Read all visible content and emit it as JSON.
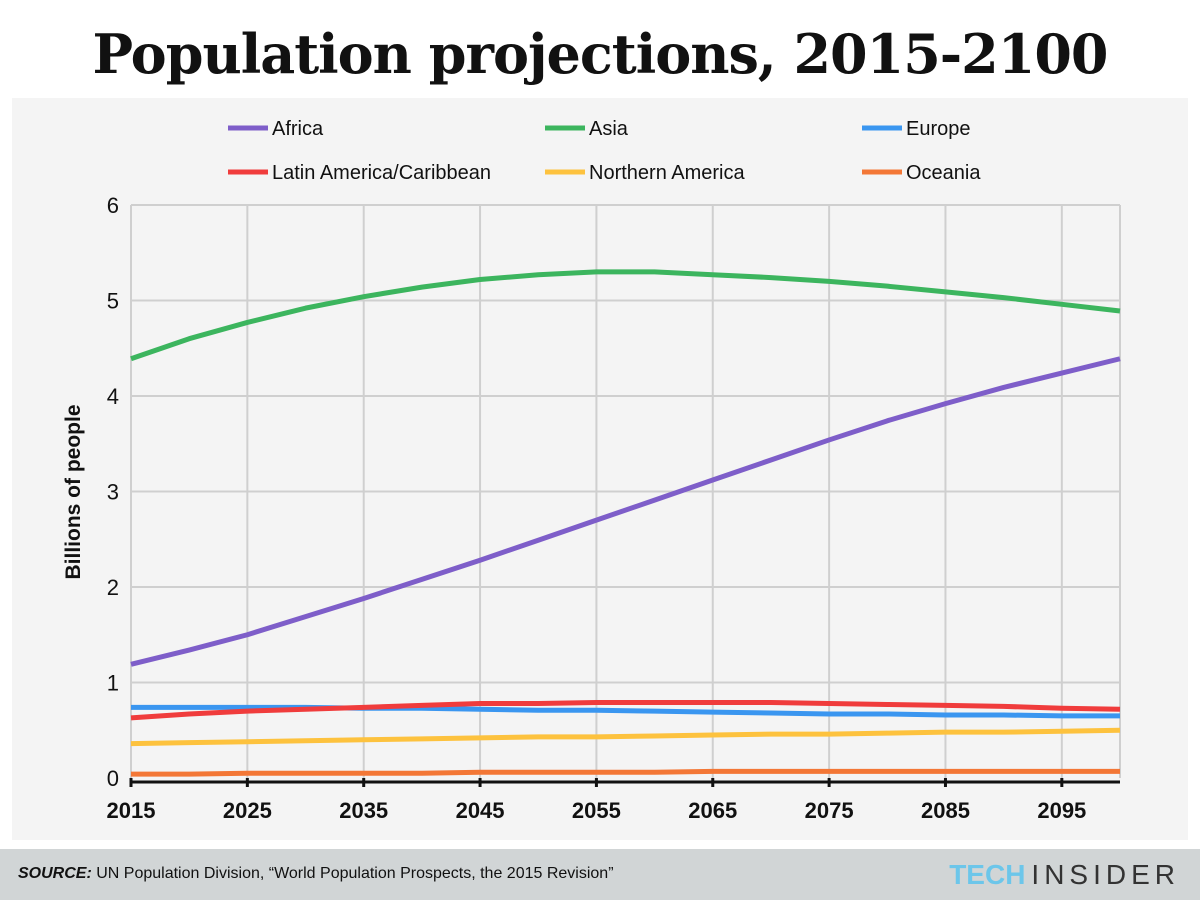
{
  "chart_data": {
    "type": "line",
    "title": "Population projections, 2015-2100",
    "xlabel": "",
    "ylabel": "Billions of people",
    "ylim": [
      0,
      6
    ],
    "xlim": [
      2015,
      2100
    ],
    "yticks": [
      "0",
      "1",
      "2",
      "3",
      "4",
      "5",
      "6"
    ],
    "xticks": [
      "2015",
      "2025",
      "2035",
      "2045",
      "2055",
      "2065",
      "2075",
      "2085",
      "2095"
    ],
    "x": [
      2015,
      2020,
      2025,
      2030,
      2035,
      2040,
      2045,
      2050,
      2055,
      2060,
      2065,
      2070,
      2075,
      2080,
      2085,
      2090,
      2095,
      2100
    ],
    "legend_position": "top",
    "series": [
      {
        "name": "Africa",
        "color": "#7e5ec9",
        "values": [
          1.19,
          1.34,
          1.5,
          1.69,
          1.88,
          2.08,
          2.28,
          2.49,
          2.7,
          2.91,
          3.12,
          3.33,
          3.54,
          3.74,
          3.92,
          4.09,
          4.24,
          4.39
        ]
      },
      {
        "name": "Asia",
        "color": "#3cb55e",
        "values": [
          4.39,
          4.6,
          4.77,
          4.92,
          5.04,
          5.14,
          5.22,
          5.27,
          5.3,
          5.3,
          5.27,
          5.24,
          5.2,
          5.15,
          5.09,
          5.03,
          4.96,
          4.89
        ]
      },
      {
        "name": "Europe",
        "color": "#3a96f0",
        "values": [
          0.74,
          0.74,
          0.74,
          0.74,
          0.73,
          0.73,
          0.72,
          0.71,
          0.71,
          0.7,
          0.69,
          0.68,
          0.67,
          0.67,
          0.66,
          0.66,
          0.65,
          0.65
        ]
      },
      {
        "name": "Latin America/Caribbean",
        "color": "#f03c3c",
        "values": [
          0.63,
          0.67,
          0.7,
          0.72,
          0.74,
          0.76,
          0.78,
          0.78,
          0.79,
          0.79,
          0.79,
          0.79,
          0.78,
          0.77,
          0.76,
          0.75,
          0.73,
          0.72
        ]
      },
      {
        "name": "Northern America",
        "color": "#fdc23e",
        "values": [
          0.36,
          0.37,
          0.38,
          0.39,
          0.4,
          0.41,
          0.42,
          0.43,
          0.43,
          0.44,
          0.45,
          0.46,
          0.46,
          0.47,
          0.48,
          0.48,
          0.49,
          0.5
        ]
      },
      {
        "name": "Oceania",
        "color": "#f37736",
        "values": [
          0.04,
          0.04,
          0.05,
          0.05,
          0.05,
          0.05,
          0.06,
          0.06,
          0.06,
          0.06,
          0.07,
          0.07,
          0.07,
          0.07,
          0.07,
          0.07,
          0.07,
          0.07
        ]
      }
    ]
  },
  "footer": {
    "source_label": "SOURCE:",
    "source_text": " UN Population Division, “World Population Prospects, the 2015 Revision”",
    "logo_part1": "TECH",
    "logo_part2": "INSIDER"
  }
}
